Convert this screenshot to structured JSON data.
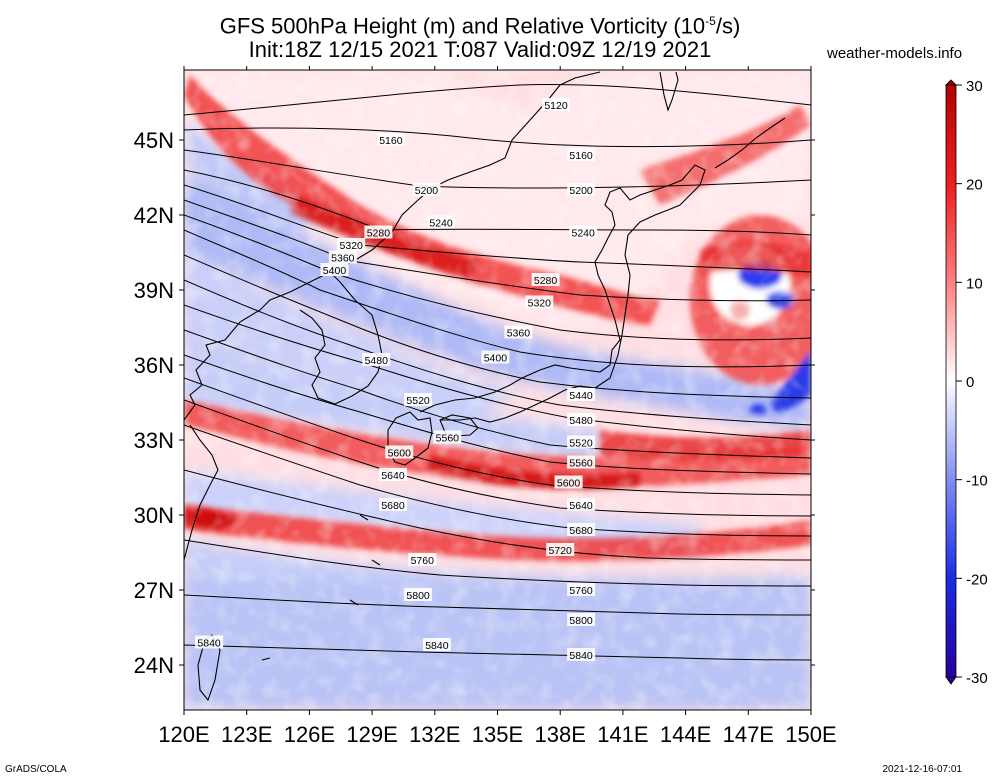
{
  "title": {
    "line1": "GFS 500hPa Height (m) and Relative Vorticity (10⁻⁵/s)",
    "line2": "Init:18Z 12/15 2021 T:087 Valid:09Z 12/19 2021"
  },
  "site": "weather-models.info",
  "footer": {
    "left": "GrADS/COLA",
    "right": "2021-12-16-07:01"
  },
  "map": {
    "region": {
      "lon": [
        120,
        150
      ],
      "lat": [
        22.2,
        47.8
      ]
    },
    "lon_ticks": [
      "120E",
      "123E",
      "126E",
      "129E",
      "132E",
      "135E",
      "138E",
      "141E",
      "144E",
      "147E",
      "150E"
    ],
    "lat_ticks": [
      "24N",
      "27N",
      "30N",
      "33N",
      "36N",
      "39N",
      "42N",
      "45N"
    ],
    "fields": [
      "500hPa Height (m)",
      "Relative Vorticity (10^-5/s)"
    ]
  },
  "colorbar": {
    "ticks": [
      "30",
      "20",
      "10",
      "0",
      "-10",
      "-20",
      "-30"
    ],
    "values": [
      30,
      20,
      10,
      0,
      -10,
      -20,
      -30
    ],
    "colors": {
      "max": "#b00000",
      "mid": "#ffffff",
      "min": "#2400a0"
    }
  },
  "contours": {
    "interval": 40,
    "labels": [
      {
        "lon": 137.8,
        "lat": 46.4,
        "text": "5120"
      },
      {
        "lon": 129.9,
        "lat": 45.0,
        "text": "5160"
      },
      {
        "lon": 139.0,
        "lat": 44.4,
        "text": "5160"
      },
      {
        "lon": 131.6,
        "lat": 43.0,
        "text": "5200"
      },
      {
        "lon": 139.0,
        "lat": 43.0,
        "text": "5200"
      },
      {
        "lon": 132.3,
        "lat": 41.7,
        "text": "5240"
      },
      {
        "lon": 139.1,
        "lat": 41.3,
        "text": "5240"
      },
      {
        "lon": 129.3,
        "lat": 41.3,
        "text": "5280"
      },
      {
        "lon": 137.3,
        "lat": 39.4,
        "text": "5280"
      },
      {
        "lon": 128.0,
        "lat": 40.8,
        "text": "5320"
      },
      {
        "lon": 137.0,
        "lat": 38.5,
        "text": "5320"
      },
      {
        "lon": 127.6,
        "lat": 40.3,
        "text": "5360"
      },
      {
        "lon": 136.0,
        "lat": 37.3,
        "text": "5360"
      },
      {
        "lon": 127.2,
        "lat": 39.8,
        "text": "5400"
      },
      {
        "lon": 134.9,
        "lat": 36.3,
        "text": "5400"
      },
      {
        "lon": 129.2,
        "lat": 36.2,
        "text": "5480"
      },
      {
        "lon": 139.0,
        "lat": 34.8,
        "text": "5440"
      },
      {
        "lon": 139.0,
        "lat": 33.8,
        "text": "5480"
      },
      {
        "lon": 131.2,
        "lat": 34.6,
        "text": "5520"
      },
      {
        "lon": 139.0,
        "lat": 32.9,
        "text": "5520"
      },
      {
        "lon": 132.6,
        "lat": 33.1,
        "text": "5560"
      },
      {
        "lon": 139.0,
        "lat": 32.1,
        "text": "5560"
      },
      {
        "lon": 130.3,
        "lat": 32.5,
        "text": "5600"
      },
      {
        "lon": 138.4,
        "lat": 31.3,
        "text": "5600"
      },
      {
        "lon": 130.0,
        "lat": 31.6,
        "text": "5640"
      },
      {
        "lon": 139.0,
        "lat": 30.4,
        "text": "5640"
      },
      {
        "lon": 130.0,
        "lat": 30.4,
        "text": "5680"
      },
      {
        "lon": 139.0,
        "lat": 29.4,
        "text": "5680"
      },
      {
        "lon": 138.0,
        "lat": 28.6,
        "text": "5720"
      },
      {
        "lon": 131.4,
        "lat": 28.2,
        "text": "5760"
      },
      {
        "lon": 139.0,
        "lat": 27.0,
        "text": "5760"
      },
      {
        "lon": 131.2,
        "lat": 26.8,
        "text": "5800"
      },
      {
        "lon": 139.0,
        "lat": 25.8,
        "text": "5800"
      },
      {
        "lon": 121.2,
        "lat": 24.9,
        "text": "5840"
      },
      {
        "lon": 132.1,
        "lat": 24.8,
        "text": "5840"
      },
      {
        "lon": 139.0,
        "lat": 24.4,
        "text": "5840"
      }
    ]
  }
}
